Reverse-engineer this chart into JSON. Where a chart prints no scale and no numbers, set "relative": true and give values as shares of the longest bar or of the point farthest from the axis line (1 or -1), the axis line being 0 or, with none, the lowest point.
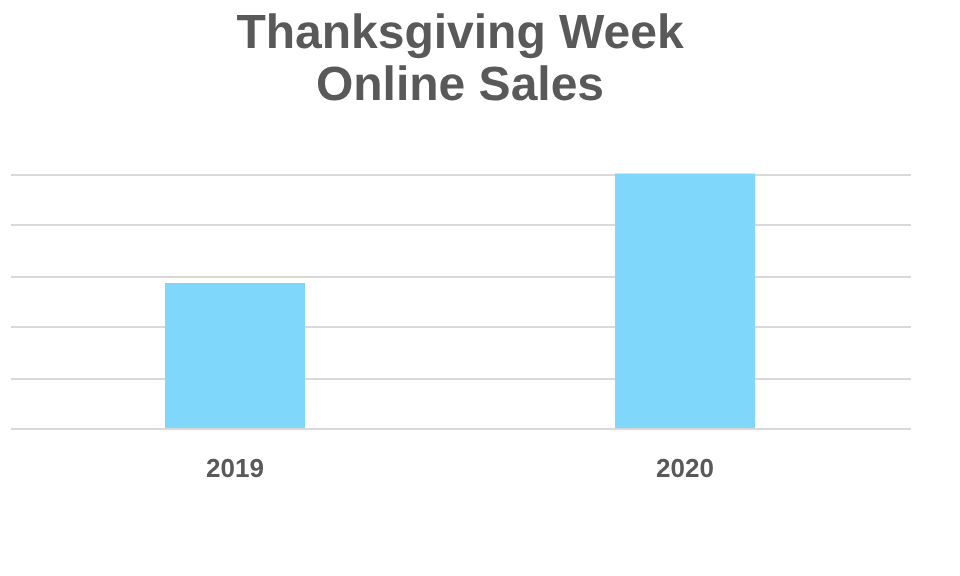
{
  "chart_data": {
    "type": "bar",
    "title": "Thanksgiving Week\nOnline Sales",
    "categories": [
      "2019",
      "2020"
    ],
    "values": [
      0.57,
      1
    ],
    "color": "#7fd8fc",
    "relative": true,
    "grid": "y"
  }
}
